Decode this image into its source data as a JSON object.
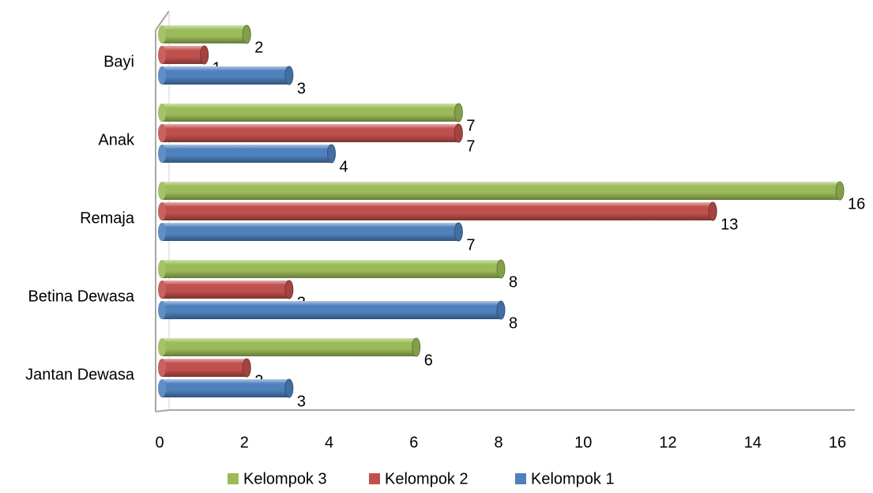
{
  "chart_data": {
    "type": "bar",
    "orientation": "horizontal",
    "categories": [
      "Bayi",
      "Anak",
      "Remaja",
      "Betina Dewasa",
      "Jantan Dewasa"
    ],
    "series": [
      {
        "name": "Kelompok 3",
        "color": "#9BBB59",
        "values": [
          2,
          7,
          16,
          8,
          6
        ]
      },
      {
        "name": "Kelompok 2",
        "color": "#C0504D",
        "values": [
          1,
          7,
          13,
          3,
          2
        ]
      },
      {
        "name": "Kelompok 1",
        "color": "#4F81BD",
        "values": [
          3,
          4,
          7,
          8,
          3
        ]
      }
    ],
    "xlim": [
      0,
      16
    ],
    "xticks": [
      "0",
      "2",
      "4",
      "6",
      "8",
      "10",
      "12",
      "14",
      "16"
    ],
    "grid": false,
    "legend": {
      "position": "bottom",
      "order": [
        "Kelompok 3",
        "Kelompok 2",
        "Kelompok 1"
      ]
    }
  }
}
